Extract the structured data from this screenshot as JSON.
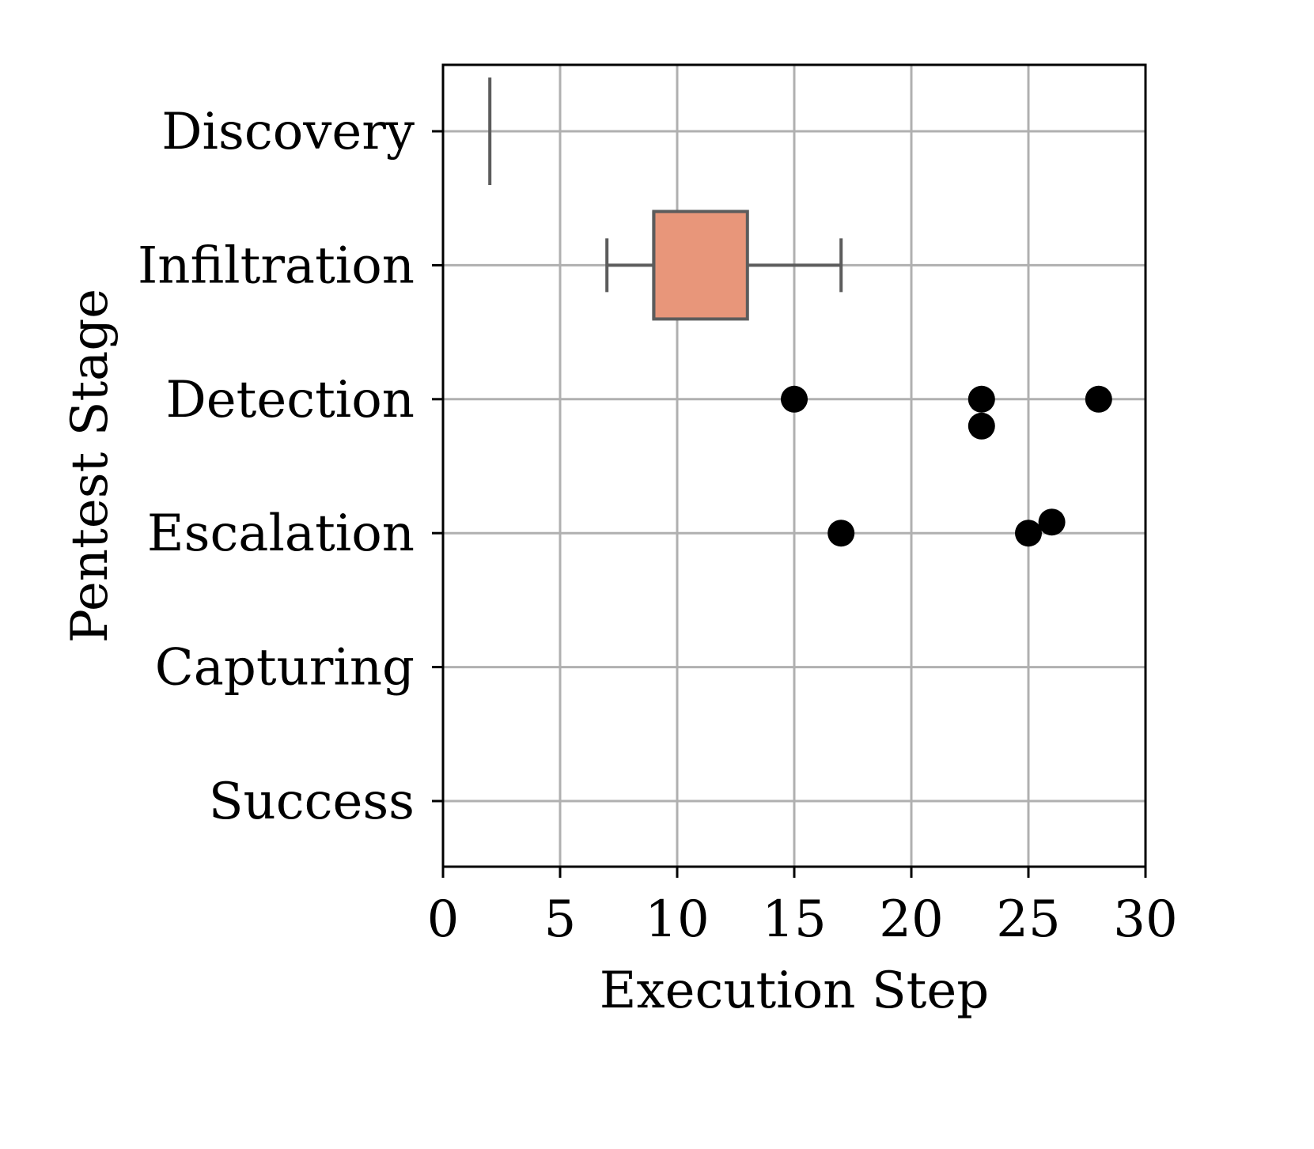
{
  "chart_data": {
    "type": "boxplot",
    "orientation": "horizontal",
    "title": "",
    "xlabel": "Execution Step",
    "ylabel": "Pentest Stage",
    "xlim": [
      0,
      30
    ],
    "xticks": [
      0,
      5,
      10,
      15,
      20,
      25,
      30
    ],
    "grid": true,
    "categories": [
      "Discovery",
      "Infiltration",
      "Detection",
      "Escalation",
      "Capturing",
      "Success"
    ],
    "boxes": [
      {
        "category": "Discovery",
        "whisker_low": 2,
        "q1": 2,
        "median": 2,
        "q3": 2,
        "whisker_high": 2
      },
      {
        "category": "Infiltration",
        "whisker_low": 7,
        "q1": 9,
        "median": 9,
        "q3": 13,
        "whisker_high": 17
      }
    ],
    "points": [
      {
        "category": "Detection",
        "values": [
          15,
          23,
          23,
          28
        ]
      },
      {
        "category": "Escalation",
        "values": [
          17,
          25,
          26
        ]
      },
      {
        "category": "Capturing",
        "values": []
      },
      {
        "category": "Success",
        "values": []
      }
    ],
    "colors": {
      "box_fill": "#E8967A",
      "box_edge": "#5C5C5C",
      "points": "#000000",
      "grid": "#B0B0B0"
    }
  }
}
